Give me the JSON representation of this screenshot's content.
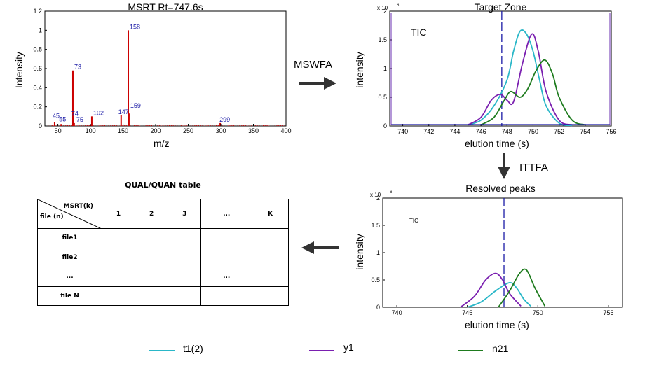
{
  "spectrum": {
    "title": "MSRT Rt=747.6s",
    "xlabel": "m/z",
    "ylabel": "Intensity",
    "xticks": [
      "50",
      "100",
      "150",
      "200",
      "250",
      "300",
      "350",
      "400"
    ],
    "yticks": [
      "0",
      "0.2",
      "0.4",
      "0.6",
      "0.8",
      "1",
      "1.2"
    ],
    "peak_labels": [
      "45",
      "55",
      "73",
      "74",
      "75",
      "102",
      "147",
      "158",
      "159",
      "299"
    ]
  },
  "target_zone": {
    "title": "Target Zone",
    "annotation": "TIC",
    "scale": "x 10",
    "scale_exp": "6",
    "xlabel": "elution time (s)",
    "ylabel": "intensity",
    "xticks": [
      "740",
      "742",
      "744",
      "746",
      "748",
      "750",
      "752",
      "754",
      "756"
    ],
    "yticks": [
      "0",
      "0.5",
      "1",
      "1.5",
      "2"
    ]
  },
  "resolved": {
    "title": "Resolved peaks",
    "annotation": "TIC",
    "scale": "x 10",
    "scale_exp": "6",
    "xlabel": "elution time (s)",
    "ylabel": "intensity",
    "xticks": [
      "740",
      "745",
      "750",
      "755"
    ],
    "yticks": [
      "0",
      "0.5",
      "1",
      "1.5",
      "2"
    ]
  },
  "flow": {
    "step1": "MSWFA",
    "step2": "ITTFA"
  },
  "table": {
    "title": "QUAL/QUAN table",
    "corner_col": "MSRT(k)",
    "corner_row": "file (n)",
    "columns": [
      "1",
      "2",
      "3",
      "...",
      "K"
    ],
    "rows": [
      {
        "label": "file1",
        "cells": [
          "",
          "",
          "",
          "",
          ""
        ]
      },
      {
        "label": "file2",
        "cells": [
          "",
          "",
          "",
          "",
          ""
        ]
      },
      {
        "label": "...",
        "cells": [
          "",
          "",
          "",
          "...",
          ""
        ]
      },
      {
        "label": "file N",
        "cells": [
          "",
          "",
          "",
          "",
          ""
        ]
      }
    ]
  },
  "legend": [
    {
      "name": "t1(2)",
      "color": "#2ab7c8"
    },
    {
      "name": "y1",
      "color": "#7a1fb0"
    },
    {
      "name": "n21",
      "color": "#1e7b1e"
    }
  ],
  "chart_data": [
    {
      "type": "bar",
      "title": "MSRT Rt=747.6s",
      "xlabel": "m/z",
      "ylabel": "Intensity",
      "xlim": [
        30,
        400
      ],
      "ylim": [
        0,
        1.2
      ],
      "x": [
        45,
        55,
        73,
        74,
        75,
        102,
        147,
        158,
        159,
        299
      ],
      "values": [
        0.04,
        0.02,
        0.58,
        0.09,
        0.03,
        0.1,
        0.11,
        1.0,
        0.13,
        0.03
      ],
      "color": "#cc0000"
    },
    {
      "type": "line",
      "title": "Target Zone",
      "xlabel": "elution time (s)",
      "ylabel": "intensity",
      "xlim": [
        739,
        756
      ],
      "ylim": [
        0,
        2
      ],
      "marker_x": 747.6,
      "series": [
        {
          "name": "t1(2)",
          "x": [
            745,
            746,
            747,
            748,
            748.5,
            749,
            749.5,
            750,
            750.5,
            751,
            752,
            753
          ],
          "values": [
            0.02,
            0.1,
            0.35,
            0.8,
            1.3,
            1.65,
            1.6,
            1.3,
            0.8,
            0.35,
            0.05,
            0.01
          ]
        },
        {
          "name": "y1",
          "x": [
            745,
            746,
            746.8,
            747.5,
            748,
            748.5,
            749.2,
            749.9,
            750.4,
            751,
            752,
            753
          ],
          "values": [
            0.02,
            0.15,
            0.45,
            0.55,
            0.45,
            0.42,
            1.1,
            1.6,
            1.3,
            0.6,
            0.1,
            0.02
          ]
        },
        {
          "name": "n21",
          "x": [
            746,
            747,
            747.8,
            748.3,
            749,
            749.6,
            750.2,
            750.9,
            751.5,
            752,
            753,
            754
          ],
          "values": [
            0.02,
            0.15,
            0.45,
            0.6,
            0.5,
            0.65,
            0.95,
            1.15,
            0.9,
            0.5,
            0.1,
            0.02
          ]
        }
      ]
    },
    {
      "type": "line",
      "title": "Resolved peaks",
      "xlabel": "elution time (s)",
      "ylabel": "intensity",
      "xlim": [
        739,
        756
      ],
      "ylim": [
        0,
        2
      ],
      "marker_x": 747.6,
      "series": [
        {
          "name": "t1(2)",
          "x": [
            745,
            746,
            747,
            748,
            748.5,
            749,
            749.5
          ],
          "values": [
            0.0,
            0.1,
            0.3,
            0.45,
            0.35,
            0.15,
            0.02
          ]
        },
        {
          "name": "y1",
          "x": [
            744.5,
            745.5,
            746.3,
            747,
            747.5,
            748,
            748.8
          ],
          "values": [
            0.0,
            0.2,
            0.5,
            0.62,
            0.5,
            0.25,
            0.02
          ]
        },
        {
          "name": "n21",
          "x": [
            747.2,
            748,
            748.7,
            749.2,
            749.8,
            750.5
          ],
          "values": [
            0.0,
            0.3,
            0.62,
            0.68,
            0.35,
            0.02
          ]
        }
      ]
    }
  ]
}
